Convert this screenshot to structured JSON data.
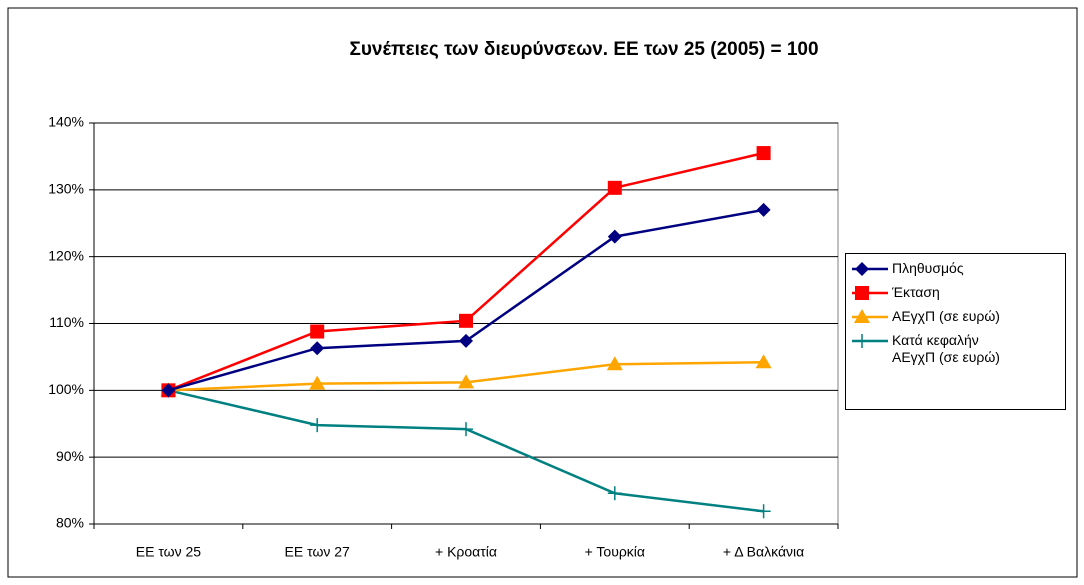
{
  "chart_data": {
    "type": "line",
    "title": "Συνέπειες των διευρύνσεων. ΕΕ των 25 (2005) = 100",
    "categories": [
      "ΕΕ των 25",
      "ΕΕ των 27",
      "+ Κροατία",
      "+ Τουρκία",
      "+ Δ Βαλκάνια"
    ],
    "series": [
      {
        "name": "Πληθυσμός",
        "color": "#000080",
        "marker": "diamond",
        "values": [
          100,
          106.3,
          107.4,
          123,
          127
        ]
      },
      {
        "name": "Έκταση",
        "color": "#ff0000",
        "marker": "square",
        "values": [
          100,
          108.8,
          110.4,
          130.3,
          135.5
        ]
      },
      {
        "name": "ΑΕγχΠ (σε ευρώ)",
        "color": "#ffa500",
        "marker": "triangle",
        "values": [
          100,
          101,
          101.2,
          103.9,
          104.2
        ]
      },
      {
        "name": "Κατά κεφαλήν ΑΕγχΠ (σε ευρώ)",
        "color": "#008080",
        "marker": "plus",
        "values": [
          100,
          94.8,
          94.2,
          84.6,
          81.9
        ]
      }
    ],
    "ylim": [
      80,
      140
    ],
    "yticks": [
      {
        "value": 80,
        "label": "80%"
      },
      {
        "value": 90,
        "label": "90%"
      },
      {
        "value": 100,
        "label": "100%"
      },
      {
        "value": 110,
        "label": "110%"
      },
      {
        "value": 120,
        "label": "120%"
      },
      {
        "value": 130,
        "label": "130%"
      },
      {
        "value": 140,
        "label": "140%"
      }
    ],
    "grid": true,
    "legend": "right"
  }
}
